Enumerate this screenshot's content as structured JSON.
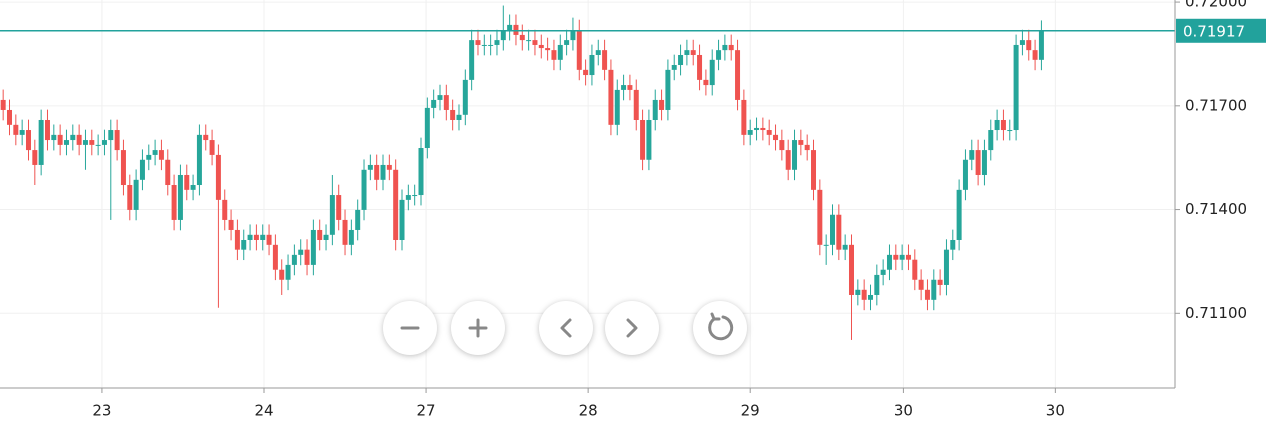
{
  "chart_data": {
    "type": "candlestick",
    "current_price": 0.71917,
    "up_color": "#26a69a",
    "down_color": "#ef5350",
    "price_line_color": "#22a29c",
    "xlim": [
      -0.5,
      185.1
    ],
    "ylim": [
      0.70884,
      0.72006
    ],
    "grid": true,
    "yticks": [
      {
        "value": 0.711,
        "label": "0.71100"
      },
      {
        "value": 0.714,
        "label": "0.71400"
      },
      {
        "value": 0.717,
        "label": "0.71700"
      },
      {
        "value": 0.72,
        "label": "0.72000"
      }
    ],
    "xticks": [
      {
        "value": 15.6,
        "label": "23"
      },
      {
        "value": 41.2,
        "label": "24"
      },
      {
        "value": 66.8,
        "label": "27"
      },
      {
        "value": 92.4,
        "label": "28"
      },
      {
        "value": 118,
        "label": "29"
      },
      {
        "value": 142.2,
        "label": "30"
      },
      {
        "value": 166.2,
        "label": "30"
      }
    ],
    "open": [
      0.71717,
      0.71688,
      0.71645,
      0.71616,
      0.7163,
      0.71572,
      0.71529,
      0.71659,
      0.71601,
      0.71616,
      0.71587,
      0.71601,
      0.71616,
      0.71587,
      0.71601,
      0.71587,
      0.71587,
      0.71601,
      0.7163,
      0.71572,
      0.71471,
      0.71399,
      0.71486,
      0.71544,
      0.71558,
      0.71572,
      0.71544,
      0.71471,
      0.7137,
      0.715,
      0.71457,
      0.71471,
      0.71616,
      0.71601,
      0.71558,
      0.71428,
      0.7137,
      0.71341,
      0.71284,
      0.71312,
      0.71327,
      0.71312,
      0.71327,
      0.71298,
      0.71226,
      0.71197,
      0.7124,
      0.71269,
      0.71284,
      0.7124,
      0.71341,
      0.71312,
      0.71327,
      0.71442,
      0.7137,
      0.71298,
      0.71341,
      0.71399,
      0.71515,
      0.71529,
      0.71486,
      0.71529,
      0.71515,
      0.71312,
      0.71428,
      0.71442,
      0.71442,
      0.71578,
      0.71694,
      0.71717,
      0.71731,
      0.71688,
      0.71659,
      0.71674,
      0.71775,
      0.7189,
      0.71876,
      0.71876,
      0.71876,
      0.7189,
      0.71919,
      0.71934,
      0.71905,
      0.7189,
      0.7189,
      0.71876,
      0.71867,
      0.71861,
      0.71833,
      0.71876,
      0.7189,
      0.71919,
      0.71804,
      0.71789,
      0.71847,
      0.71861,
      0.71804,
      0.71645,
      0.71746,
      0.7176,
      0.71746,
      0.71659,
      0.71544,
      0.71659,
      0.71717,
      0.71688,
      0.71804,
      0.71818,
      0.71847,
      0.71861,
      0.71847,
      0.71775,
      0.7176,
      0.71833,
      0.71861,
      0.71876,
      0.71861,
      0.71717,
      0.71616,
      0.7163,
      0.71636,
      0.7163,
      0.71616,
      0.71601,
      0.71572,
      0.71515,
      0.71601,
      0.71587,
      0.71572,
      0.71457,
      0.71298,
      0.71298,
      0.71385,
      0.71284,
      0.71298,
      0.71153,
      0.71168,
      0.71139,
      0.71153,
      0.71211,
      0.71226,
      0.71269,
      0.71255,
      0.71269,
      0.71255,
      0.71197,
      0.71168,
      0.71139,
      0.71197,
      0.71182,
      0.71284,
      0.71312,
      0.71457,
      0.71544,
      0.71572,
      0.715,
      0.71572,
      0.7163,
      0.71659,
      0.7163,
      0.7163,
      0.71876,
      0.7189,
      0.71861,
      0.71833
    ],
    "high": [
      0.71747,
      0.71718,
      0.71675,
      0.7166,
      0.7166,
      0.71602,
      0.71689,
      0.71689,
      0.71646,
      0.71646,
      0.71631,
      0.71646,
      0.71646,
      0.71631,
      0.71631,
      0.71617,
      0.71631,
      0.7166,
      0.7166,
      0.71602,
      0.71501,
      0.71516,
      0.71574,
      0.71588,
      0.71602,
      0.71602,
      0.71574,
      0.71501,
      0.7153,
      0.7153,
      0.71501,
      0.71646,
      0.71646,
      0.71631,
      0.71588,
      0.71458,
      0.714,
      0.71371,
      0.71342,
      0.71357,
      0.71357,
      0.71357,
      0.71357,
      0.71328,
      0.71256,
      0.7127,
      0.71299,
      0.71314,
      0.71314,
      0.71371,
      0.71371,
      0.71357,
      0.715,
      0.71472,
      0.714,
      0.71371,
      0.71429,
      0.71545,
      0.71559,
      0.71559,
      0.71559,
      0.71559,
      0.71545,
      0.71458,
      0.71472,
      0.71472,
      0.71608,
      0.71724,
      0.71747,
      0.71761,
      0.71761,
      0.71718,
      0.71704,
      0.71805,
      0.7192,
      0.7192,
      0.71906,
      0.71906,
      0.7192,
      0.7199,
      0.71964,
      0.71964,
      0.71935,
      0.7192,
      0.7192,
      0.71906,
      0.71897,
      0.71891,
      0.71906,
      0.7192,
      0.71955,
      0.71949,
      0.71834,
      0.71877,
      0.71891,
      0.71891,
      0.71834,
      0.71776,
      0.7179,
      0.7179,
      0.71776,
      0.71689,
      0.71689,
      0.71747,
      0.71747,
      0.71834,
      0.71848,
      0.71877,
      0.71891,
      0.71891,
      0.71877,
      0.71805,
      0.71863,
      0.71891,
      0.71906,
      0.71906,
      0.71891,
      0.71747,
      0.7166,
      0.71666,
      0.71666,
      0.7166,
      0.71646,
      0.71631,
      0.71602,
      0.71631,
      0.71631,
      0.71617,
      0.71602,
      0.71487,
      0.71328,
      0.71415,
      0.71415,
      0.71328,
      0.71328,
      0.71198,
      0.71198,
      0.71183,
      0.71241,
      0.71256,
      0.71299,
      0.71299,
      0.71299,
      0.71299,
      0.71285,
      0.71227,
      0.71198,
      0.71227,
      0.71227,
      0.71314,
      0.71342,
      0.71487,
      0.71574,
      0.71602,
      0.71602,
      0.71602,
      0.7166,
      0.71689,
      0.71689,
      0.7166,
      0.71906,
      0.7192,
      0.7192,
      0.71891,
      0.71947
    ],
    "low": [
      0.71658,
      0.71615,
      0.71586,
      0.71586,
      0.71542,
      0.71471,
      0.71499,
      0.71571,
      0.71571,
      0.71557,
      0.71557,
      0.71571,
      0.71557,
      0.71515,
      0.71557,
      0.71557,
      0.71557,
      0.7137,
      0.71542,
      0.71441,
      0.71369,
      0.71369,
      0.71456,
      0.71514,
      0.71528,
      0.71514,
      0.71441,
      0.7134,
      0.7134,
      0.71427,
      0.71427,
      0.71441,
      0.71571,
      0.71528,
      0.71116,
      0.7134,
      0.71311,
      0.71254,
      0.71254,
      0.71282,
      0.71282,
      0.71282,
      0.71268,
      0.71196,
      0.71153,
      0.71167,
      0.7121,
      0.71239,
      0.7121,
      0.7121,
      0.71282,
      0.71282,
      0.71297,
      0.7134,
      0.71268,
      0.71268,
      0.71311,
      0.71369,
      0.71485,
      0.71456,
      0.71456,
      0.71485,
      0.71282,
      0.71282,
      0.71398,
      0.71412,
      0.71412,
      0.71548,
      0.71664,
      0.71687,
      0.71658,
      0.71629,
      0.71629,
      0.71644,
      0.71745,
      0.71846,
      0.71846,
      0.71846,
      0.71846,
      0.7186,
      0.71889,
      0.71875,
      0.7186,
      0.7186,
      0.71846,
      0.71837,
      0.71831,
      0.71803,
      0.71803,
      0.71846,
      0.7186,
      0.71774,
      0.71759,
      0.71759,
      0.71817,
      0.71774,
      0.71615,
      0.71615,
      0.71716,
      0.71716,
      0.71629,
      0.71514,
      0.71514,
      0.71629,
      0.71658,
      0.71658,
      0.71774,
      0.71788,
      0.71817,
      0.71817,
      0.71745,
      0.7173,
      0.7173,
      0.71803,
      0.71831,
      0.71831,
      0.71687,
      0.71586,
      0.71586,
      0.716,
      0.716,
      0.71586,
      0.71571,
      0.71542,
      0.71485,
      0.71485,
      0.71557,
      0.71542,
      0.71427,
      0.71268,
      0.7124,
      0.71268,
      0.71254,
      0.71254,
      0.71023,
      0.71123,
      0.71109,
      0.71109,
      0.71123,
      0.71181,
      0.71196,
      0.71225,
      0.71225,
      0.71225,
      0.71167,
      0.71138,
      0.71109,
      0.71109,
      0.71152,
      0.71152,
      0.71254,
      0.71282,
      0.71427,
      0.71514,
      0.7147,
      0.7147,
      0.71542,
      0.716,
      0.716,
      0.716,
      0.716,
      0.71846,
      0.71831,
      0.71803,
      0.71803
    ],
    "close": [
      0.71688,
      0.71645,
      0.71616,
      0.7163,
      0.71572,
      0.71529,
      0.71659,
      0.71601,
      0.71616,
      0.71587,
      0.71601,
      0.71616,
      0.71587,
      0.71601,
      0.71587,
      0.71587,
      0.71601,
      0.7163,
      0.71572,
      0.71471,
      0.71399,
      0.71486,
      0.71544,
      0.71558,
      0.71572,
      0.71544,
      0.71471,
      0.7137,
      0.715,
      0.71457,
      0.71471,
      0.71616,
      0.71601,
      0.71558,
      0.71428,
      0.7137,
      0.71341,
      0.71284,
      0.71312,
      0.71327,
      0.71312,
      0.71327,
      0.71298,
      0.71226,
      0.71197,
      0.7124,
      0.71269,
      0.71284,
      0.7124,
      0.71341,
      0.71312,
      0.71327,
      0.71442,
      0.7137,
      0.71298,
      0.71341,
      0.71399,
      0.71515,
      0.71529,
      0.71486,
      0.71529,
      0.71515,
      0.71312,
      0.71428,
      0.71442,
      0.71442,
      0.71578,
      0.71694,
      0.71717,
      0.71731,
      0.71688,
      0.71659,
      0.71674,
      0.71775,
      0.7189,
      0.71876,
      0.71876,
      0.71876,
      0.7189,
      0.71919,
      0.71934,
      0.71905,
      0.7189,
      0.7189,
      0.71876,
      0.71867,
      0.71861,
      0.71833,
      0.71876,
      0.7189,
      0.71919,
      0.71804,
      0.71789,
      0.71847,
      0.71861,
      0.71804,
      0.71645,
      0.71746,
      0.7176,
      0.71746,
      0.71659,
      0.71544,
      0.71659,
      0.71717,
      0.71688,
      0.71804,
      0.71818,
      0.71847,
      0.71861,
      0.71847,
      0.71775,
      0.7176,
      0.71833,
      0.71861,
      0.71876,
      0.71861,
      0.71717,
      0.71616,
      0.7163,
      0.71636,
      0.7163,
      0.71616,
      0.71601,
      0.71572,
      0.71515,
      0.71601,
      0.71587,
      0.71572,
      0.71457,
      0.71298,
      0.71298,
      0.71385,
      0.71284,
      0.71298,
      0.71153,
      0.71168,
      0.71139,
      0.71153,
      0.71211,
      0.71226,
      0.71269,
      0.71255,
      0.71269,
      0.71255,
      0.71197,
      0.71168,
      0.71139,
      0.71197,
      0.71182,
      0.71284,
      0.71312,
      0.71457,
      0.71544,
      0.71572,
      0.715,
      0.71572,
      0.7163,
      0.71659,
      0.7163,
      0.7163,
      0.71876,
      0.7189,
      0.71861,
      0.71833,
      0.71917
    ]
  }
}
